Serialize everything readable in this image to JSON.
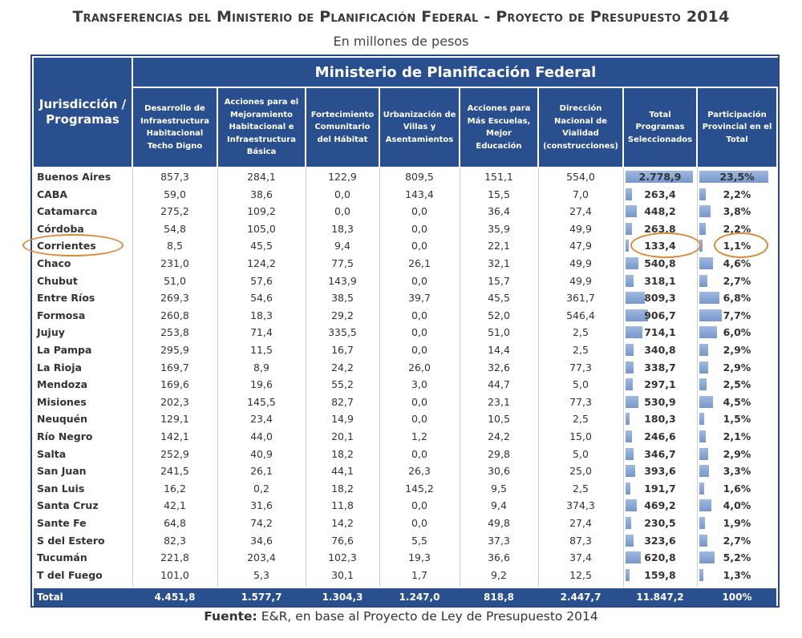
{
  "title": "Transferencias del Ministerio de Planificación Federal - Proyecto de Presupuesto 2014",
  "subtitle": "En millones de pesos",
  "ministry": "Ministerio de Planificación Federal",
  "jurisdiccion_header": "Jurisdicción /\nProgramas",
  "columns": [
    "Desarrollo de Infraestructura Habitacional Techo Digno",
    "Acciones para el Mejoramiento Habitacional e Infraestructura Básica",
    "Fortecimiento Comunitario del Hábitat",
    "Urbanización de Villas y Asentamientos",
    "Acciones para Más Escuelas, Mejor Educación",
    "Dirección Nacional de Vialidad (construcciones)",
    "Total Programas Seleccionados",
    "Participación Provincial en el Total"
  ],
  "rows": [
    {
      "name": "Buenos Aires",
      "v": [
        "857,3",
        "284,1",
        "122,9",
        "809,5",
        "151,1",
        "554,0",
        "2.778,9",
        "23,5%"
      ],
      "share": 23.5
    },
    {
      "name": "CABA",
      "v": [
        "59,0",
        "38,6",
        "0,0",
        "143,4",
        "15,5",
        "7,0",
        "263,4",
        "2,2%"
      ],
      "share": 2.2
    },
    {
      "name": "Catamarca",
      "v": [
        "275,2",
        "109,2",
        "0,0",
        "0,0",
        "36,4",
        "27,4",
        "448,2",
        "3,8%"
      ],
      "share": 3.8
    },
    {
      "name": "Córdoba",
      "v": [
        "54,8",
        "105,0",
        "18,3",
        "0,0",
        "35,9",
        "49,9",
        "263,8",
        "2,2%"
      ],
      "share": 2.2
    },
    {
      "name": "Corrientes",
      "v": [
        "8,5",
        "45,5",
        "9,4",
        "0,0",
        "22,1",
        "47,9",
        "133,4",
        "1,1%"
      ],
      "share": 1.1
    },
    {
      "name": "Chaco",
      "v": [
        "231,0",
        "124,2",
        "77,5",
        "26,1",
        "32,1",
        "49,9",
        "540,8",
        "4,6%"
      ],
      "share": 4.6
    },
    {
      "name": "Chubut",
      "v": [
        "51,0",
        "57,6",
        "143,9",
        "0,0",
        "15,7",
        "49,9",
        "318,1",
        "2,7%"
      ],
      "share": 2.7
    },
    {
      "name": "Entre Ríos",
      "v": [
        "269,3",
        "54,6",
        "38,5",
        "39,7",
        "45,5",
        "361,7",
        "809,3",
        "6,8%"
      ],
      "share": 6.8
    },
    {
      "name": "Formosa",
      "v": [
        "260,8",
        "18,3",
        "29,2",
        "0,0",
        "52,0",
        "546,4",
        "906,7",
        "7,7%"
      ],
      "share": 7.7
    },
    {
      "name": "Jujuy",
      "v": [
        "253,8",
        "71,4",
        "335,5",
        "0,0",
        "51,0",
        "2,5",
        "714,1",
        "6,0%"
      ],
      "share": 6.0
    },
    {
      "name": "La Pampa",
      "v": [
        "295,9",
        "11,5",
        "16,7",
        "0,0",
        "14,4",
        "2,5",
        "340,8",
        "2,9%"
      ],
      "share": 2.9
    },
    {
      "name": "La Rioja",
      "v": [
        "169,7",
        "8,9",
        "24,2",
        "26,0",
        "32,6",
        "77,3",
        "338,7",
        "2,9%"
      ],
      "share": 2.9
    },
    {
      "name": "Mendoza",
      "v": [
        "169,6",
        "19,6",
        "55,2",
        "3,0",
        "44,7",
        "5,0",
        "297,1",
        "2,5%"
      ],
      "share": 2.5
    },
    {
      "name": "Misiones",
      "v": [
        "202,3",
        "145,5",
        "82,7",
        "0,0",
        "23,1",
        "77,3",
        "530,9",
        "4,5%"
      ],
      "share": 4.5
    },
    {
      "name": "Neuquén",
      "v": [
        "129,1",
        "23,4",
        "14,9",
        "0,0",
        "10,5",
        "2,5",
        "180,3",
        "1,5%"
      ],
      "share": 1.5
    },
    {
      "name": "Río Negro",
      "v": [
        "142,1",
        "44,0",
        "20,1",
        "1,2",
        "24,2",
        "15,0",
        "246,6",
        "2,1%"
      ],
      "share": 2.1
    },
    {
      "name": "Salta",
      "v": [
        "252,9",
        "40,9",
        "18,2",
        "0,0",
        "29,8",
        "5,0",
        "346,7",
        "2,9%"
      ],
      "share": 2.9
    },
    {
      "name": "San Juan",
      "v": [
        "241,5",
        "26,1",
        "44,1",
        "26,3",
        "30,6",
        "25,0",
        "393,6",
        "3,3%"
      ],
      "share": 3.3
    },
    {
      "name": "San Luis",
      "v": [
        "16,2",
        "0,2",
        "18,2",
        "145,2",
        "9,5",
        "2,5",
        "191,7",
        "1,6%"
      ],
      "share": 1.6
    },
    {
      "name": "Santa Cruz",
      "v": [
        "42,1",
        "31,6",
        "11,8",
        "0,0",
        "9,4",
        "374,3",
        "469,2",
        "4,0%"
      ],
      "share": 4.0
    },
    {
      "name": "Sante Fe",
      "v": [
        "64,8",
        "74,2",
        "14,2",
        "0,0",
        "49,8",
        "27,4",
        "230,5",
        "1,9%"
      ],
      "share": 1.9
    },
    {
      "name": "S del Estero",
      "v": [
        "82,3",
        "34,6",
        "76,6",
        "5,5",
        "37,3",
        "87,3",
        "323,6",
        "2,7%"
      ],
      "share": 2.7
    },
    {
      "name": "Tucumán",
      "v": [
        "221,8",
        "203,4",
        "102,3",
        "19,3",
        "36,6",
        "37,4",
        "620,8",
        "5,2%"
      ],
      "share": 5.2
    },
    {
      "name": "T del Fuego",
      "v": [
        "101,0",
        "5,3",
        "30,1",
        "1,7",
        "9,2",
        "12,5",
        "159,8",
        "1,3%"
      ],
      "share": 1.3
    }
  ],
  "total": {
    "name": "Total",
    "v": [
      "4.451,8",
      "1.577,7",
      "1.304,3",
      "1.247,0",
      "818,8",
      "2.447,7",
      "11.847,2",
      "100%"
    ]
  },
  "source_label": "Fuente:",
  "source_text": " E&R, en base al Proyecto de Ley de Presupuesto 2014",
  "colors": {
    "header_bg": "#2a4f8f",
    "bar": "#4a74b8",
    "highlight": "#d98a3a"
  }
}
